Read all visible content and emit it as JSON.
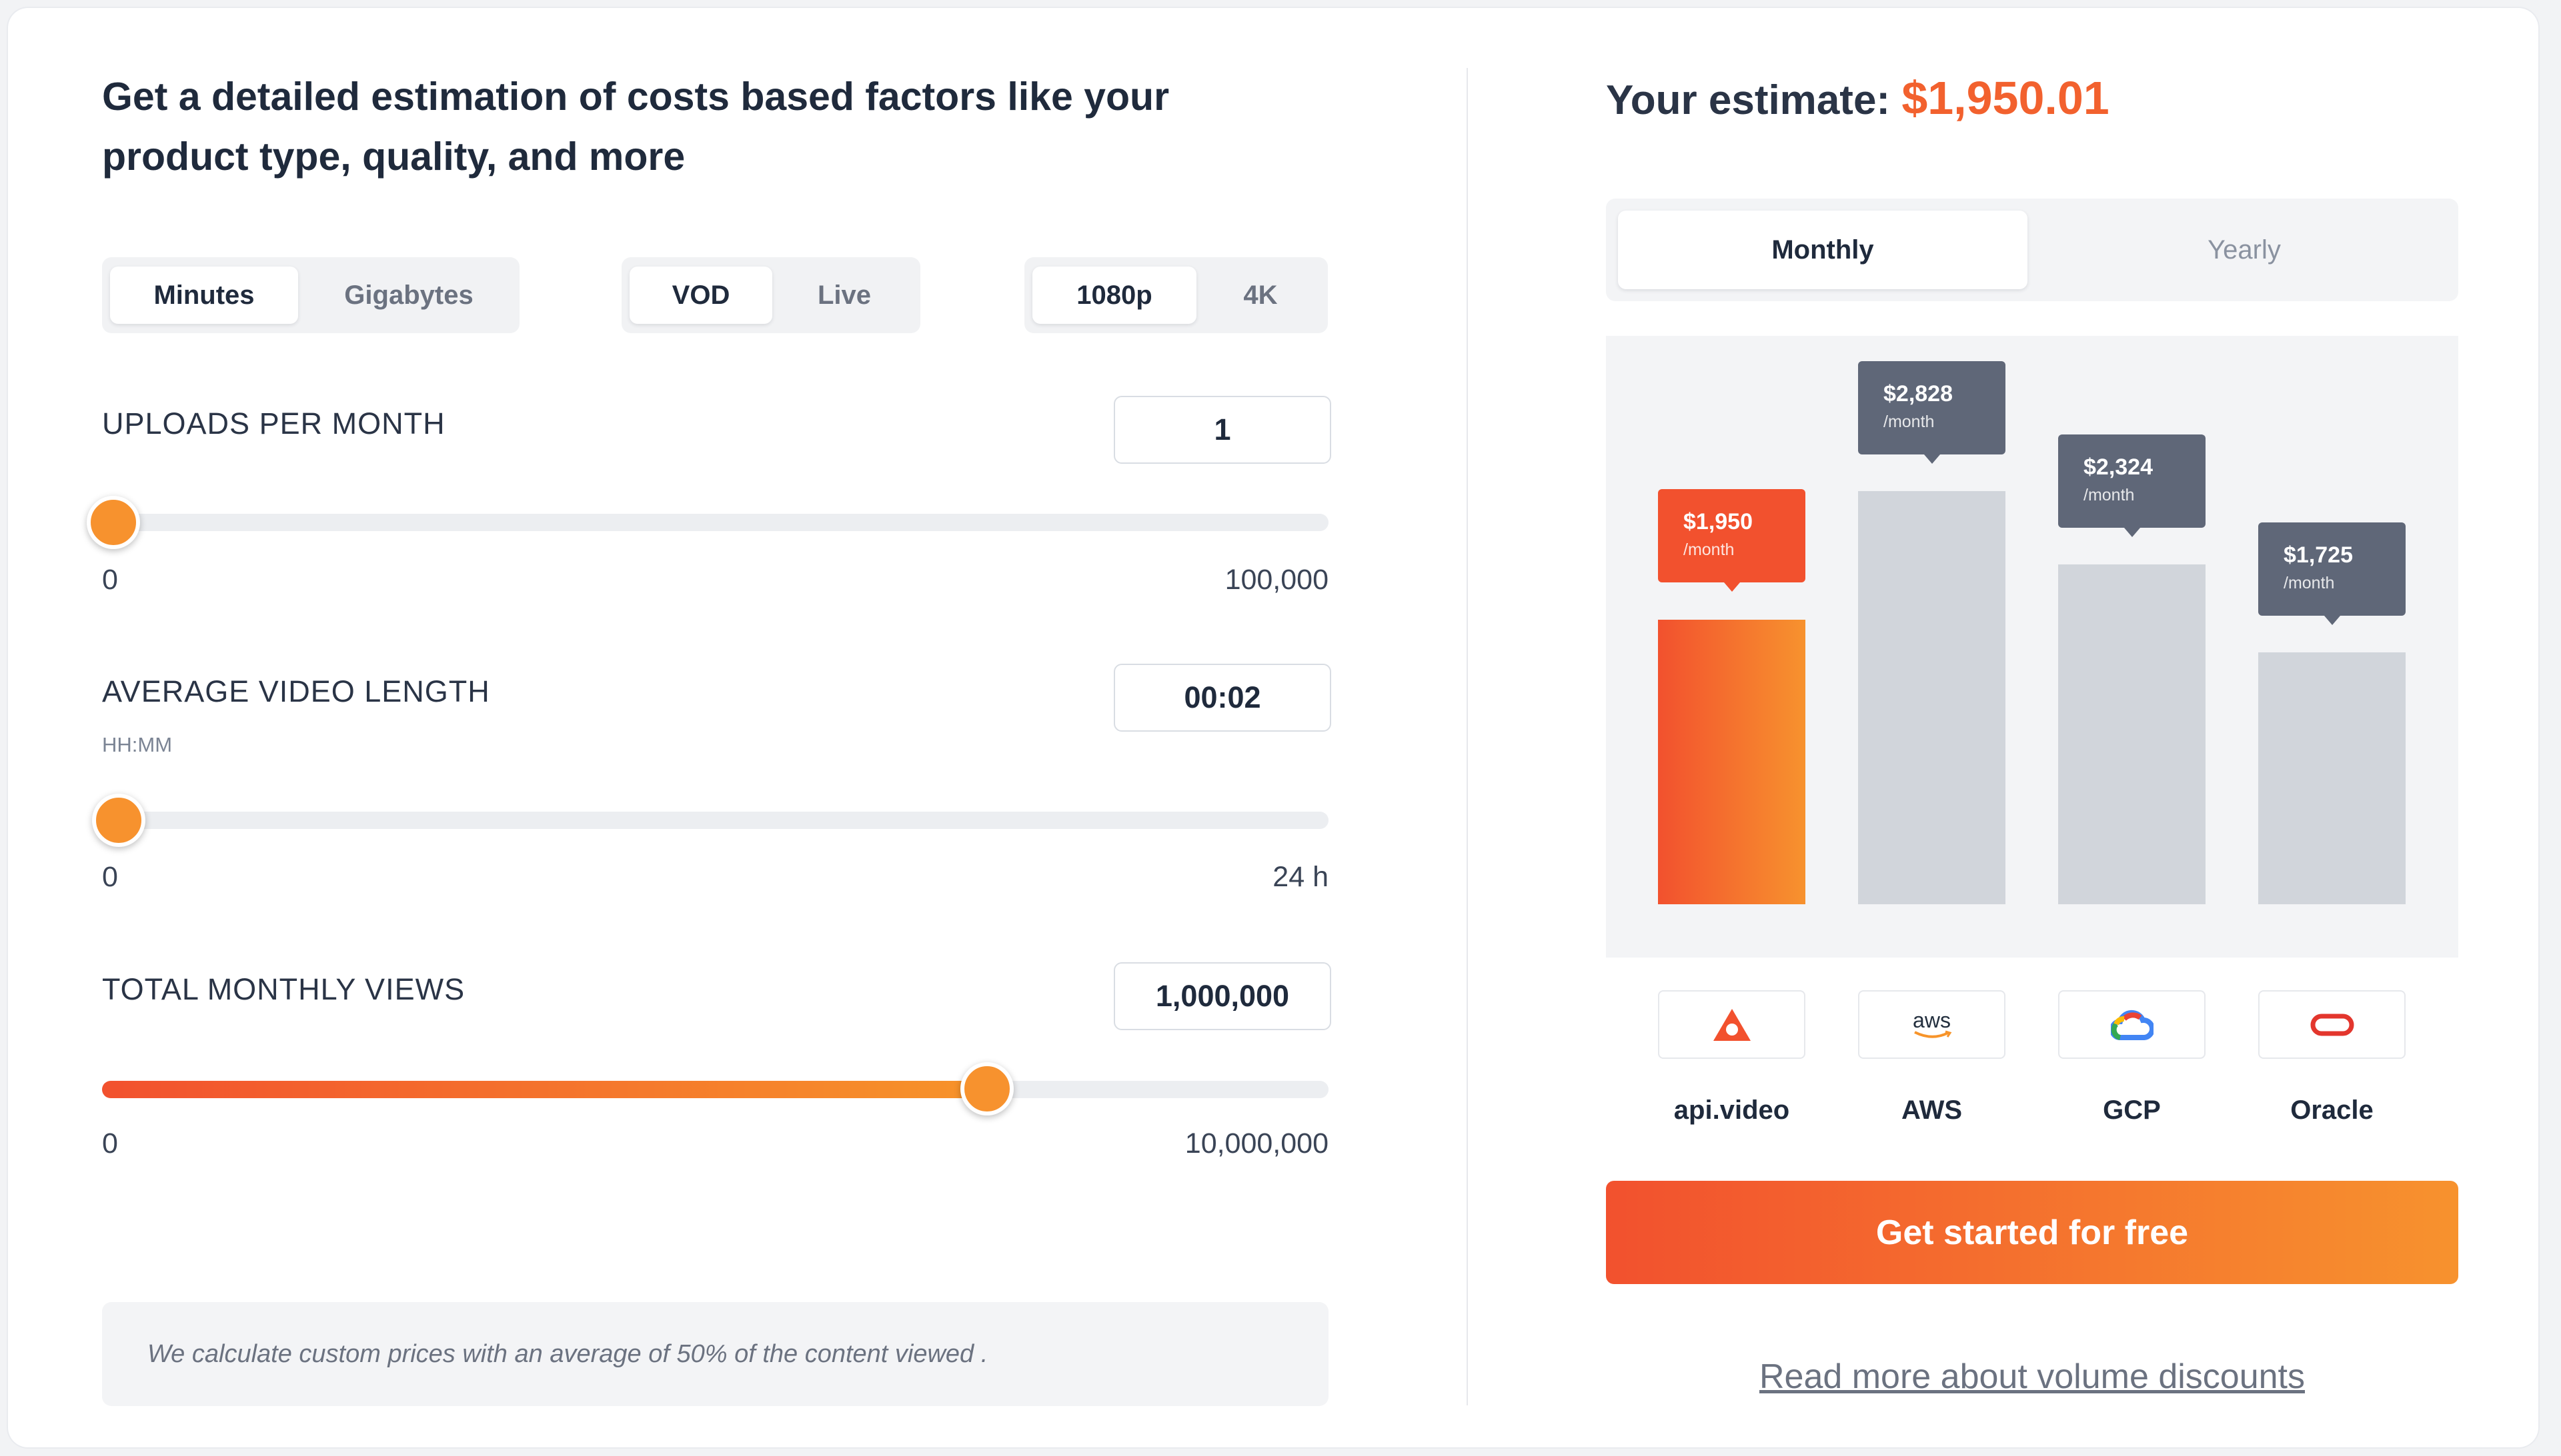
{
  "heading": "Get a detailed estimation of costs based factors like your product type, quality, and more",
  "toggles": {
    "unit": [
      "Minutes",
      "Gigabytes"
    ],
    "mode": [
      "VOD",
      "Live"
    ],
    "quality": [
      "1080p",
      "4K"
    ]
  },
  "uploads": {
    "label": "UPLOADS PER MONTH",
    "value": "1",
    "min": "0",
    "max": "100,000",
    "level_percent": 0
  },
  "length": {
    "label": "AVERAGE VIDEO LENGTH",
    "sub": "HH:MM",
    "value": "00:02",
    "min": "0",
    "max": "24 h",
    "level_percent": 0.14
  },
  "views": {
    "label": "TOTAL MONTHLY VIEWS",
    "value": "1,000,000",
    "min": "0",
    "max": "10,000,000",
    "level_percent": 72.5
  },
  "note": "We calculate custom prices with an average of 50% of the content viewed .",
  "estimate": {
    "label": "Your estimate:",
    "amount": "$1,950.01"
  },
  "period": [
    "Monthly",
    "Yearly"
  ],
  "chart_data": {
    "type": "bar",
    "categories": [
      "api.video",
      "AWS",
      "GCP",
      "Oracle"
    ],
    "values": [
      1950,
      2828,
      2324,
      1725
    ],
    "data_labels": [
      "$1,950",
      "$2,828",
      "$2,324",
      "$1,725"
    ],
    "unit_label": "/month",
    "colors": {
      "brand": "#f2512e",
      "others": "#d1d5db"
    }
  },
  "providers": [
    {
      "name": "api.video",
      "icon": "api-video-logo-icon"
    },
    {
      "name": "AWS",
      "icon": "aws-logo-icon",
      "logo_text": "aws"
    },
    {
      "name": "GCP",
      "icon": "gcp-cloud-logo-icon"
    },
    {
      "name": "Oracle",
      "icon": "oracle-logo-icon"
    }
  ],
  "cta": "Get started for free",
  "link": "Read more about volume discounts",
  "colors": {
    "accent": "#f2612e",
    "text": "#1f2a3c",
    "slate": "#5f6778"
  }
}
